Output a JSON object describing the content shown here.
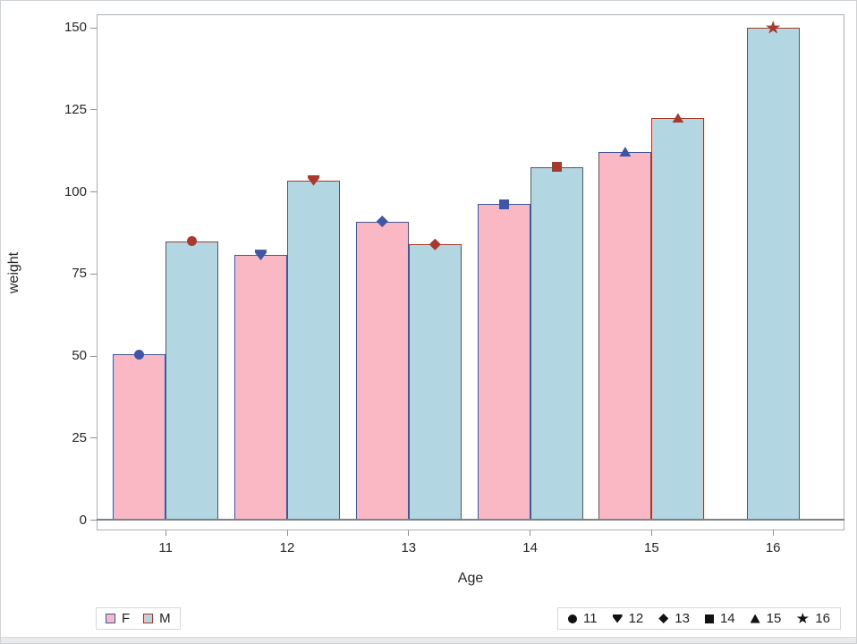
{
  "chart_data": {
    "type": "bar",
    "title": "",
    "xlabel": "Age",
    "ylabel": "weight",
    "categories": [
      11,
      12,
      13,
      14,
      15,
      16
    ],
    "series": [
      {
        "name": "F",
        "values": [
          50.5,
          80.75,
          91,
          96.25,
          112.25,
          null
        ]
      },
      {
        "name": "M",
        "values": [
          85,
          103.5,
          84,
          107.5,
          122.5,
          150
        ]
      }
    ],
    "ylim": [
      0,
      150
    ],
    "yticks": [
      0,
      25,
      50,
      75,
      100,
      125,
      150
    ],
    "grid": false,
    "legend_position": "bottom",
    "marker_by_age": {
      "11": "circle",
      "12": "triangle-down",
      "13": "diamond",
      "14": "square",
      "15": "triangle-up",
      "16": "star"
    }
  },
  "colors": {
    "f_fill": "#fab8c4",
    "f_stroke": "#445694",
    "f_marker": "#3e56a6",
    "m_fill": "#b2d6e2",
    "m_stroke": "#a23a2e",
    "m_marker": "#a8392c",
    "legend_marker": "#111111",
    "axis_line": "#7d8285",
    "wall_border": "#a9aeb0"
  },
  "legend_sex": [
    {
      "label": "F"
    },
    {
      "label": "M"
    }
  ],
  "legend_age": [
    {
      "marker": "circle",
      "label": "11"
    },
    {
      "marker": "triangle-down",
      "label": "12"
    },
    {
      "marker": "diamond",
      "label": "13"
    },
    {
      "marker": "square",
      "label": "14"
    },
    {
      "marker": "triangle-up",
      "label": "15"
    },
    {
      "marker": "star",
      "label": "16"
    }
  ]
}
